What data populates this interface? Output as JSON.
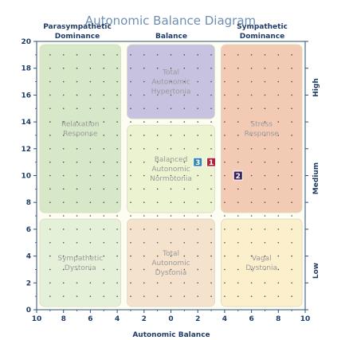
{
  "chart_data": {
    "type": "scatter",
    "title": "Autonomic Balance Diagram",
    "xlabel": "Autonomic Balance",
    "x_axis": {
      "min": -10,
      "max": 10,
      "tick_values": [
        -10,
        -8,
        -6,
        -4,
        -2,
        0,
        2,
        4,
        6,
        8,
        10
      ],
      "tick_labels": [
        "10",
        "8",
        "6",
        "4",
        "2",
        "0",
        "2",
        "4",
        "6",
        "8",
        "10"
      ]
    },
    "y_axis": {
      "min": 0,
      "max": 20,
      "tick_values": [
        0,
        2,
        4,
        6,
        8,
        10,
        12,
        14,
        16,
        18,
        20
      ],
      "tick_labels": [
        "0",
        "2",
        "4",
        "6",
        "8",
        "10",
        "12",
        "14",
        "16",
        "18",
        "20"
      ]
    },
    "column_headers": [
      {
        "line1": "Parasympathetic",
        "line2": "Dominance"
      },
      {
        "line1": "Balance",
        "line2": ""
      },
      {
        "line1": "Sympathetic",
        "line2": "Dominance"
      }
    ],
    "row_labels": [
      "High",
      "Medium",
      "Low"
    ],
    "regions": [
      {
        "lines": [
          "Relaxation",
          "Response"
        ],
        "x": [
          -10,
          -3.5
        ],
        "y": [
          7,
          20
        ],
        "color": "#c8e0b9"
      },
      {
        "lines": [
          "Total",
          "Autonomic",
          "Hypertonia"
        ],
        "x": [
          -3.5,
          3.5
        ],
        "y": [
          14,
          20
        ],
        "color": "#b3aed9"
      },
      {
        "lines": [
          "Stress",
          "Response"
        ],
        "x": [
          3.5,
          10
        ],
        "y": [
          7,
          20
        ],
        "color": "#efb9a0"
      },
      {
        "lines": [
          "Balanced",
          "Autonomic",
          "Normotonia"
        ],
        "x": [
          -3.5,
          3.5
        ],
        "y": [
          7,
          14
        ],
        "color": "#e6efc5"
      },
      {
        "lines": [
          "Sympathetic",
          "Dystonia"
        ],
        "x": [
          -10,
          -3.5
        ],
        "y": [
          0,
          7
        ],
        "color": "#dcebd0"
      },
      {
        "lines": [
          "Total",
          "Autonomic",
          "Dystonia"
        ],
        "x": [
          -3.5,
          3.5
        ],
        "y": [
          0,
          7
        ],
        "color": "#f1d8bf"
      },
      {
        "lines": [
          "Vagal",
          "Dystonia"
        ],
        "x": [
          3.5,
          10
        ],
        "y": [
          0,
          7
        ],
        "color": "#fbe9bd"
      }
    ],
    "markers": [
      {
        "label": "1",
        "x": 3,
        "y": 11,
        "color": "#b0243a"
      },
      {
        "label": "2",
        "x": 5,
        "y": 10,
        "color": "#3b1f5c"
      },
      {
        "label": "3",
        "x": 2,
        "y": 11,
        "color": "#2f86b0"
      }
    ],
    "grid": "dotted",
    "legend": "none"
  }
}
